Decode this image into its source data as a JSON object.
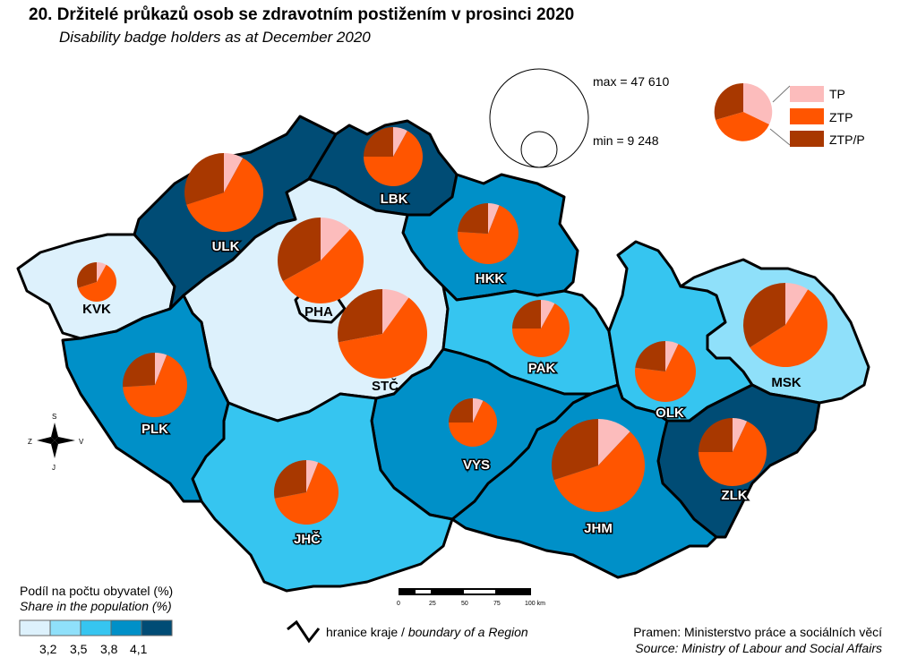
{
  "title": "20. Držitelé průkazů osob se zdravotním postižením v prosinci 2020",
  "subtitle": "Disability badge holders as at December 2020",
  "size_legend": {
    "max": "max = 47 610",
    "min": "min = 9 248"
  },
  "pie_legend": [
    {
      "label": "TP",
      "color": "#fcbcbc"
    },
    {
      "label": "ZTP",
      "color": "#ff5500"
    },
    {
      "label": "ZTP/P",
      "color": "#a83800"
    }
  ],
  "choropleth_legend": {
    "title": "Podíl na počtu obyvatel (%)",
    "title_en": "Share in the population (%)",
    "colors": [
      "#ddf1fc",
      "#8fe0fa",
      "#36c5f0",
      "#0090c8",
      "#004c75"
    ],
    "breaks": [
      "3,2",
      "3,5",
      "3,8",
      "4,1"
    ]
  },
  "boundary_legend": {
    "cz": "hranice kraje / ",
    "en": "boundary of a Region"
  },
  "scale_bar": {
    "ticks": [
      "0",
      "25",
      "50",
      "75",
      "100 km"
    ]
  },
  "compass": {
    "n": "S",
    "s": "J",
    "w": "Z",
    "e": "V"
  },
  "source": {
    "cz": "Pramen: Ministerstvo práce a sociálních věcí",
    "en": "Source: Ministry of Labour and Social Affairs"
  },
  "regions": [
    {
      "code": "KVK",
      "class": 0,
      "pie": [
        8,
        62,
        30
      ]
    },
    {
      "code": "ULK",
      "class": 4,
      "pie": [
        8,
        62,
        30
      ]
    },
    {
      "code": "LBK",
      "class": 4,
      "pie": [
        8,
        67,
        25
      ]
    },
    {
      "code": "HKK",
      "class": 3,
      "pie": [
        6,
        70,
        24
      ]
    },
    {
      "code": "PHA",
      "class": 0,
      "pie": [
        12,
        55,
        33
      ]
    },
    {
      "code": "STČ",
      "class": 0,
      "pie": [
        10,
        62,
        28
      ]
    },
    {
      "code": "PAK",
      "class": 2,
      "pie": [
        8,
        67,
        25
      ]
    },
    {
      "code": "OLK",
      "class": 2,
      "pie": [
        7,
        70,
        23
      ]
    },
    {
      "code": "MSK",
      "class": 1,
      "pie": [
        9,
        57,
        34
      ]
    },
    {
      "code": "ZLK",
      "class": 4,
      "pie": [
        7,
        68,
        25
      ]
    },
    {
      "code": "JHM",
      "class": 3,
      "pie": [
        12,
        58,
        30
      ]
    },
    {
      "code": "VYS",
      "class": 3,
      "pie": [
        7,
        68,
        25
      ]
    },
    {
      "code": "JHČ",
      "class": 2,
      "pie": [
        6,
        66,
        28
      ]
    },
    {
      "code": "PLK",
      "class": 3,
      "pie": [
        6,
        68,
        26
      ]
    }
  ]
}
